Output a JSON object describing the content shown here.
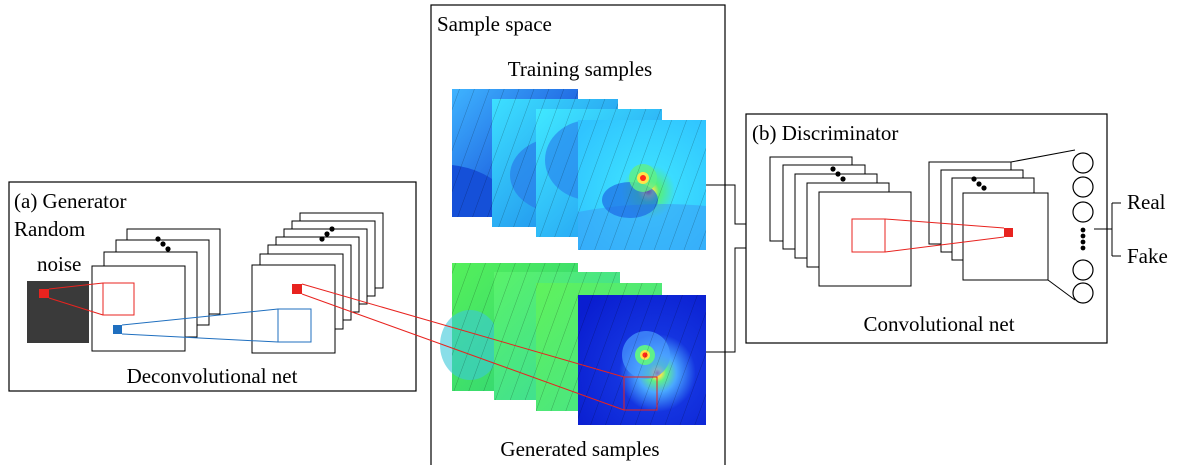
{
  "generator": {
    "title": "(a) Generator",
    "input_label_line1": "Random",
    "input_label_line2": "noise",
    "net_label": "Deconvolutional net"
  },
  "sample_space": {
    "title": "Sample space",
    "training_label": "Training samples",
    "generated_label": "Generated samples"
  },
  "discriminator": {
    "title": "(b) Discriminator",
    "net_label": "Convolutional net",
    "output_real": "Real",
    "output_fake": "Fake"
  },
  "colors": {
    "noise_fill": "#3a3a3a",
    "highlight_red": "#e8231f",
    "highlight_blue": "#1f6fbf",
    "frame_stroke": "#000000"
  },
  "icons": [
    "vertical-ellipsis-icon",
    "neuron-node-icon",
    "sample-heatmap-icon"
  ]
}
